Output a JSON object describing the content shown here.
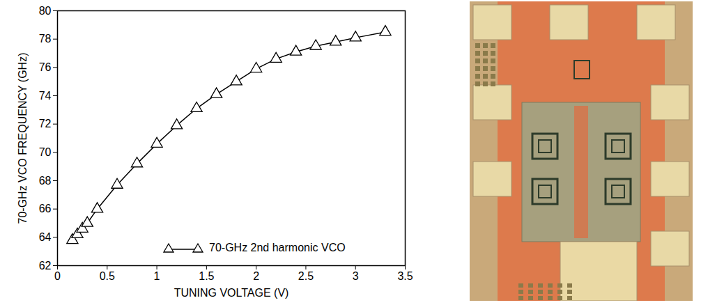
{
  "chart_data": {
    "type": "line",
    "x_label": "TUNING VOLTAGE (V)",
    "y_label": "70-GHz VCO FREQUENCY (GHz)",
    "x": [
      0.15,
      0.2,
      0.25,
      0.3,
      0.4,
      0.6,
      0.8,
      1.0,
      1.2,
      1.4,
      1.6,
      1.8,
      2.0,
      2.2,
      2.4,
      2.6,
      2.8,
      3.0,
      3.3
    ],
    "series": [
      {
        "name": "70-GHz 2nd harmonic VCO",
        "color": "#000000",
        "marker": "triangle",
        "values": [
          63.8,
          64.2,
          64.6,
          65.0,
          66.0,
          67.7,
          69.2,
          70.6,
          71.9,
          73.1,
          74.1,
          75.0,
          75.9,
          76.6,
          77.1,
          77.5,
          77.8,
          78.1,
          78.5
        ]
      }
    ],
    "xlim": [
      0,
      3.5
    ],
    "xticks": [
      0,
      0.5,
      1,
      1.5,
      2,
      2.5,
      3,
      3.5
    ],
    "ylim": [
      62,
      80
    ],
    "yticks": [
      62,
      64,
      66,
      68,
      70,
      72,
      74,
      76,
      78,
      80
    ],
    "grid": false,
    "legend": "lower right"
  }
}
